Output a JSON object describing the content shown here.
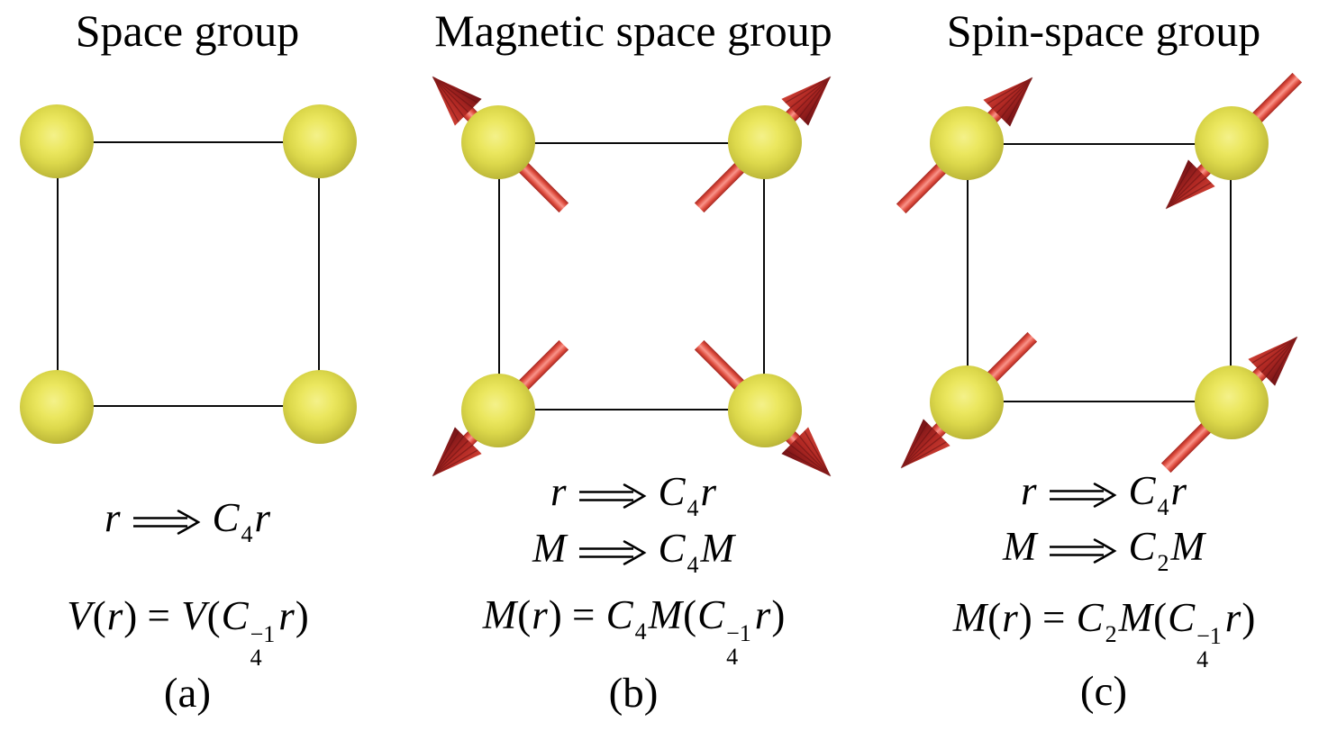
{
  "figure": {
    "background": "#ffffff",
    "colors": {
      "atom_center": "#ebe75f",
      "atom_edge": "#8b8628",
      "lattice_line": "#0a0a0a",
      "spin_shaft_red": "#e0493c",
      "spin_head_dark_red": "#9c1f1e",
      "text": "#000000"
    },
    "panels": [
      {
        "id": "a",
        "title": "Space group",
        "label": "(a)",
        "atom_count": 4,
        "spins": null,
        "equations": [
          [
            {
              "v": "r",
              "s": "i"
            },
            {
              "s": "arrow"
            },
            {
              "v": "C",
              "s": "i"
            },
            {
              "v": "4",
              "s": "sub"
            },
            {
              "v": "r",
              "s": "i"
            }
          ],
          [
            {
              "v": "V",
              "s": "i"
            },
            {
              "v": "(",
              "s": "u"
            },
            {
              "v": "r",
              "s": "i"
            },
            {
              "v": ")",
              "s": "u"
            },
            {
              "v": " = ",
              "s": "u"
            },
            {
              "v": "V",
              "s": "i"
            },
            {
              "v": "(",
              "s": "u"
            },
            {
              "v": "C",
              "s": "i"
            },
            {
              "s": "supsub",
              "sup": "−1",
              "sub": "4"
            },
            {
              "v": "r",
              "s": "i"
            },
            {
              "v": ")",
              "s": "u"
            }
          ]
        ]
      },
      {
        "id": "b",
        "title": "Magnetic space group",
        "label": "(b)",
        "atom_count": 4,
        "spins": {
          "top_left": "nw",
          "top_right": "ne",
          "bottom_left": "sw",
          "bottom_right": "se"
        },
        "equations": [
          [
            {
              "v": "r",
              "s": "i"
            },
            {
              "s": "arrow"
            },
            {
              "v": "C",
              "s": "i"
            },
            {
              "v": "4",
              "s": "sub"
            },
            {
              "v": "r",
              "s": "i"
            }
          ],
          [
            {
              "v": "M",
              "s": "i"
            },
            {
              "s": "arrow"
            },
            {
              "v": "C",
              "s": "i"
            },
            {
              "v": "4",
              "s": "sub"
            },
            {
              "v": "M",
              "s": "i"
            }
          ],
          [
            {
              "v": "M",
              "s": "i"
            },
            {
              "v": "(",
              "s": "u"
            },
            {
              "v": "r",
              "s": "i"
            },
            {
              "v": ")",
              "s": "u"
            },
            {
              "v": " = ",
              "s": "u"
            },
            {
              "v": "C",
              "s": "i"
            },
            {
              "v": "4",
              "s": "sub"
            },
            {
              "v": "M",
              "s": "i"
            },
            {
              "v": "(",
              "s": "u"
            },
            {
              "v": "C",
              "s": "i"
            },
            {
              "s": "supsub",
              "sup": "−1",
              "sub": "4"
            },
            {
              "v": "r",
              "s": "i"
            },
            {
              "v": ")",
              "s": "u"
            }
          ]
        ]
      },
      {
        "id": "c",
        "title": "Spin-space group",
        "label": "(c)",
        "atom_count": 4,
        "spins": {
          "top_left": "ne",
          "top_right": "sw",
          "bottom_left": "sw",
          "bottom_right": "ne"
        },
        "equations": [
          [
            {
              "v": "r",
              "s": "i"
            },
            {
              "s": "arrow"
            },
            {
              "v": "C",
              "s": "i"
            },
            {
              "v": "4",
              "s": "sub"
            },
            {
              "v": "r",
              "s": "i"
            }
          ],
          [
            {
              "v": "M",
              "s": "i"
            },
            {
              "s": "arrow"
            },
            {
              "v": "C",
              "s": "i"
            },
            {
              "v": "2",
              "s": "sub"
            },
            {
              "v": "M",
              "s": "i"
            }
          ],
          [
            {
              "v": "M",
              "s": "i"
            },
            {
              "v": "(",
              "s": "u"
            },
            {
              "v": "r",
              "s": "i"
            },
            {
              "v": ")",
              "s": "u"
            },
            {
              "v": " = ",
              "s": "u"
            },
            {
              "v": "C",
              "s": "i"
            },
            {
              "v": "2",
              "s": "sub"
            },
            {
              "v": "M",
              "s": "i"
            },
            {
              "v": "(",
              "s": "u"
            },
            {
              "v": "C",
              "s": "i"
            },
            {
              "s": "supsub",
              "sup": "−1",
              "sub": "4"
            },
            {
              "v": "r",
              "s": "i"
            },
            {
              "v": ")",
              "s": "u"
            }
          ]
        ]
      }
    ]
  }
}
